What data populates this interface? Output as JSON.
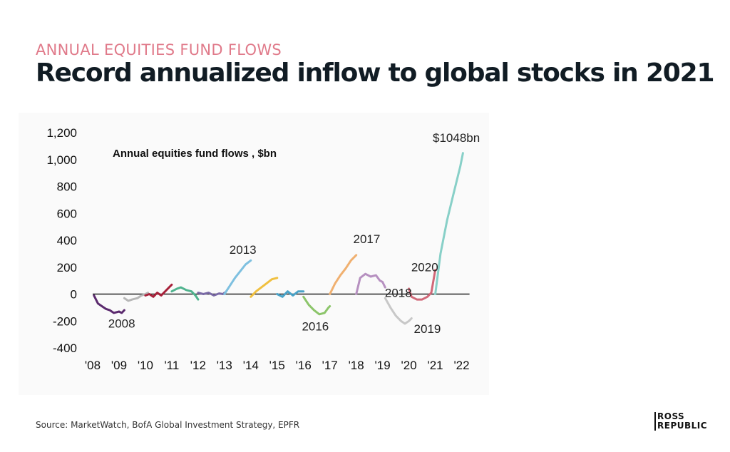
{
  "header": {
    "kicker": "ANNUAL EQUITIES FUND FLOWS",
    "title": "Record annualized inflow to global stocks in 2021"
  },
  "footer": {
    "source": "Source: MarketWatch, BofA Global Investment Strategy, EPFR",
    "brand_line1": "ROSS",
    "brand_line2": "REPUBLIC"
  },
  "chart_data": {
    "type": "line",
    "title": "Annual equities fund flows , $bn",
    "xlabel": "",
    "ylabel": "",
    "xlim": [
      2008,
      2022.5
    ],
    "ylim": [
      -400,
      1200
    ],
    "y_ticks": [
      "1,200",
      "1,000",
      "800",
      "600",
      "400",
      "200",
      "0",
      "-200",
      "-400"
    ],
    "y_tick_values": [
      1200,
      1000,
      800,
      600,
      400,
      200,
      0,
      -200,
      -400
    ],
    "x_ticks": [
      "'08",
      "'09",
      "'10",
      "'11",
      "'12",
      "'13",
      "'14",
      "'15",
      "'16",
      "'17",
      "'18",
      "'19",
      "'20",
      "'21",
      "'22"
    ],
    "x_tick_values": [
      2008,
      2009,
      2010,
      2011,
      2012,
      2013,
      2014,
      2015,
      2016,
      2017,
      2018,
      2019,
      2020,
      2021,
      2022
    ],
    "grid": false,
    "zero_line": true,
    "series": [
      {
        "color": "#5b2a6e",
        "points": [
          [
            2008.05,
            -10
          ],
          [
            2008.2,
            -70
          ],
          [
            2008.35,
            -90
          ],
          [
            2008.5,
            -110
          ],
          [
            2008.65,
            -120
          ],
          [
            2008.8,
            -140
          ],
          [
            2009.0,
            -130
          ],
          [
            2009.1,
            -140
          ],
          [
            2009.2,
            -120
          ]
        ]
      },
      {
        "color": "#b7b7b7",
        "points": [
          [
            2009.2,
            -30
          ],
          [
            2009.35,
            -50
          ],
          [
            2009.5,
            -40
          ],
          [
            2009.7,
            -30
          ],
          [
            2009.85,
            -10
          ],
          [
            2010.0,
            0
          ],
          [
            2010.1,
            10
          ]
        ]
      },
      {
        "color": "#a8213a",
        "points": [
          [
            2010.0,
            -10
          ],
          [
            2010.15,
            0
          ],
          [
            2010.3,
            -20
          ],
          [
            2010.45,
            10
          ],
          [
            2010.6,
            -10
          ],
          [
            2010.75,
            20
          ],
          [
            2010.9,
            50
          ],
          [
            2011.0,
            70
          ]
        ]
      },
      {
        "color": "#4fb38e",
        "points": [
          [
            2011.0,
            20
          ],
          [
            2011.2,
            40
          ],
          [
            2011.35,
            50
          ],
          [
            2011.55,
            30
          ],
          [
            2011.75,
            20
          ],
          [
            2011.9,
            -10
          ],
          [
            2012.0,
            -40
          ]
        ]
      },
      {
        "color": "#7a6aa6",
        "points": [
          [
            2012.0,
            10
          ],
          [
            2012.2,
            0
          ],
          [
            2012.4,
            10
          ],
          [
            2012.6,
            -10
          ],
          [
            2012.8,
            5
          ],
          [
            2012.95,
            0
          ],
          [
            2013.0,
            10
          ]
        ]
      },
      {
        "color": "#7ec0e0",
        "points": [
          [
            2013.0,
            0
          ],
          [
            2013.2,
            60
          ],
          [
            2013.4,
            120
          ],
          [
            2013.6,
            170
          ],
          [
            2013.8,
            220
          ],
          [
            2014.0,
            250
          ]
        ]
      },
      {
        "color": "#f0c040",
        "points": [
          [
            2014.0,
            -20
          ],
          [
            2014.2,
            20
          ],
          [
            2014.4,
            50
          ],
          [
            2014.6,
            80
          ],
          [
            2014.8,
            110
          ],
          [
            2015.0,
            120
          ]
        ]
      },
      {
        "color": "#4aa3c8",
        "points": [
          [
            2015.0,
            0
          ],
          [
            2015.2,
            -20
          ],
          [
            2015.4,
            20
          ],
          [
            2015.6,
            -10
          ],
          [
            2015.8,
            20
          ],
          [
            2016.0,
            20
          ]
        ]
      },
      {
        "color": "#8cc56a",
        "points": [
          [
            2016.0,
            -20
          ],
          [
            2016.2,
            -80
          ],
          [
            2016.4,
            -120
          ],
          [
            2016.6,
            -150
          ],
          [
            2016.8,
            -140
          ],
          [
            2016.95,
            -100
          ],
          [
            2017.0,
            -90
          ]
        ]
      },
      {
        "color": "#f0b070",
        "points": [
          [
            2017.0,
            0
          ],
          [
            2017.2,
            80
          ],
          [
            2017.4,
            140
          ],
          [
            2017.6,
            190
          ],
          [
            2017.8,
            250
          ],
          [
            2018.0,
            290
          ]
        ]
      },
      {
        "color": "#b690c0",
        "points": [
          [
            2018.0,
            0
          ],
          [
            2018.15,
            120
          ],
          [
            2018.35,
            150
          ],
          [
            2018.55,
            130
          ],
          [
            2018.75,
            140
          ],
          [
            2018.9,
            100
          ],
          [
            2019.0,
            90
          ],
          [
            2019.1,
            50
          ]
        ]
      },
      {
        "color": "#c8c8c8",
        "points": [
          [
            2019.1,
            -30
          ],
          [
            2019.3,
            -100
          ],
          [
            2019.5,
            -160
          ],
          [
            2019.7,
            -200
          ],
          [
            2019.85,
            -220
          ],
          [
            2020.0,
            -200
          ],
          [
            2020.1,
            -180
          ]
        ]
      },
      {
        "color": "#d06878",
        "points": [
          [
            2020.0,
            40
          ],
          [
            2020.1,
            -20
          ],
          [
            2020.3,
            -40
          ],
          [
            2020.5,
            -40
          ],
          [
            2020.7,
            -20
          ],
          [
            2020.85,
            10
          ],
          [
            2021.0,
            180
          ]
        ]
      },
      {
        "color": "#88d0c8",
        "points": [
          [
            2021.0,
            0
          ],
          [
            2021.2,
            300
          ],
          [
            2021.45,
            550
          ],
          [
            2021.7,
            750
          ],
          [
            2021.95,
            950
          ],
          [
            2022.05,
            1048
          ]
        ]
      }
    ],
    "annotations": [
      {
        "text": "2008",
        "x": 2009.1,
        "y": -250
      },
      {
        "text": "2013",
        "x": 2013.7,
        "y": 300
      },
      {
        "text": "2016",
        "x": 2016.45,
        "y": -270
      },
      {
        "text": "2017",
        "x": 2018.4,
        "y": 380
      },
      {
        "text": "2018",
        "x": 2019.6,
        "y": -20
      },
      {
        "text": "2019",
        "x": 2020.7,
        "y": -290
      },
      {
        "text": "2020",
        "x": 2020.6,
        "y": 170
      },
      {
        "text": "$1048bn",
        "x": 2021.8,
        "y": 1130
      }
    ]
  }
}
